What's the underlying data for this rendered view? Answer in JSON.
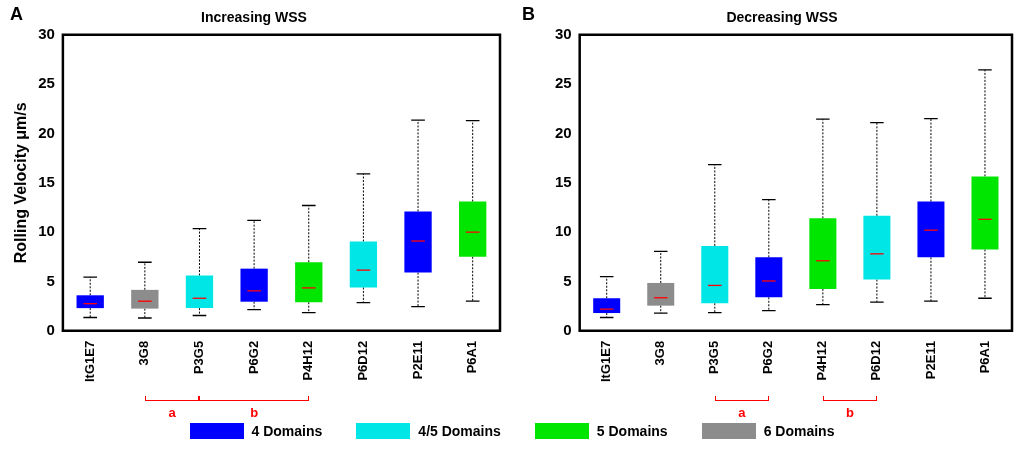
{
  "chart_data": [
    {
      "type": "box",
      "title": "Increasing WSS",
      "ylabel": "Rolling Velocity μm/s",
      "categories": [
        "ItG1E7",
        "3G8",
        "P3G5",
        "P6G2",
        "P4H12",
        "P6D12",
        "P2E11",
        "P6A1"
      ],
      "series": [
        {
          "name": "4 Domains",
          "color": "#0000ff",
          "boxes": [
            {
              "low": 1.35,
              "q1": 2.3,
              "median": 2.75,
              "q3": 3.6,
              "high": 5.45
            },
            null,
            null,
            {
              "low": 2.15,
              "q1": 2.95,
              "median": 4.05,
              "q3": 6.3,
              "high": 11.2
            },
            null,
            null,
            {
              "low": 2.45,
              "q1": 5.9,
              "median": 9.1,
              "q3": 12.1,
              "high": 21.35
            },
            null
          ]
        },
        {
          "name": "4/5 Domains",
          "color": "#00e5e5",
          "boxes": [
            null,
            null,
            {
              "low": 1.55,
              "q1": 2.3,
              "median": 3.3,
              "q3": 5.6,
              "high": 10.35
            },
            null,
            null,
            {
              "low": 2.85,
              "q1": 4.4,
              "median": 6.15,
              "q3": 9.05,
              "high": 15.9
            },
            null,
            null
          ]
        },
        {
          "name": "5 Domains",
          "color": "#00e600",
          "boxes": [
            null,
            null,
            null,
            null,
            {
              "low": 1.85,
              "q1": 2.9,
              "median": 4.35,
              "q3": 6.95,
              "high": 12.7
            },
            null,
            null,
            {
              "low": 3.0,
              "q1": 7.5,
              "median": 10.0,
              "q3": 13.1,
              "high": 21.3
            }
          ]
        },
        {
          "name": "6 Domains",
          "color": "#8c8c8c",
          "boxes": [
            null,
            {
              "low": 1.3,
              "q1": 2.25,
              "median": 3.0,
              "q3": 4.15,
              "high": 6.95
            },
            null,
            null,
            null,
            null,
            null,
            null
          ]
        }
      ],
      "ylim": [
        0,
        30
      ],
      "yticks": [
        0,
        5,
        10,
        15,
        20,
        25,
        30
      ],
      "grid": false,
      "legend": "bottom",
      "annotations": [
        "A",
        "a",
        "b"
      ]
    },
    {
      "type": "box",
      "title": "Decreasing WSS",
      "categories": [
        "ItG1E7",
        "3G8",
        "P3G5",
        "P6G2",
        "P4H12",
        "P6D12",
        "P2E11",
        "P6A1"
      ],
      "series": [
        {
          "name": "4 Domains",
          "color": "#0000ff",
          "boxes": [
            {
              "low": 1.35,
              "q1": 1.8,
              "median": 2.2,
              "q3": 3.3,
              "high": 5.5
            },
            null,
            null,
            {
              "low": 2.05,
              "q1": 3.4,
              "median": 5.05,
              "q3": 7.45,
              "high": 13.3
            },
            null,
            null,
            {
              "low": 3.0,
              "q1": 7.45,
              "median": 10.2,
              "q3": 13.1,
              "high": 21.5
            },
            null
          ]
        },
        {
          "name": "4/5 Domains",
          "color": "#00e5e5",
          "boxes": [
            null,
            null,
            {
              "low": 1.85,
              "q1": 2.8,
              "median": 4.6,
              "q3": 8.6,
              "high": 16.85
            },
            null,
            null,
            {
              "low": 2.9,
              "q1": 5.2,
              "median": 7.8,
              "q3": 11.65,
              "high": 21.1
            },
            null,
            null
          ]
        },
        {
          "name": "5 Domains",
          "color": "#00e600",
          "boxes": [
            null,
            null,
            null,
            null,
            {
              "low": 2.65,
              "q1": 4.25,
              "median": 7.1,
              "q3": 11.4,
              "high": 21.45
            },
            null,
            null,
            {
              "low": 3.3,
              "q1": 8.25,
              "median": 11.3,
              "q3": 15.65,
              "high": 26.45
            }
          ]
        },
        {
          "name": "6 Domains",
          "color": "#8c8c8c",
          "boxes": [
            null,
            {
              "low": 1.8,
              "q1": 2.55,
              "median": 3.35,
              "q3": 4.85,
              "high": 8.05
            },
            null,
            null,
            null,
            null,
            null,
            null
          ]
        }
      ],
      "ylim": [
        0,
        30
      ],
      "yticks": [
        0,
        5,
        10,
        15,
        20,
        25,
        30
      ],
      "grid": false,
      "legend": "bottom",
      "annotations": [
        "B",
        "a",
        "b"
      ]
    }
  ]
}
